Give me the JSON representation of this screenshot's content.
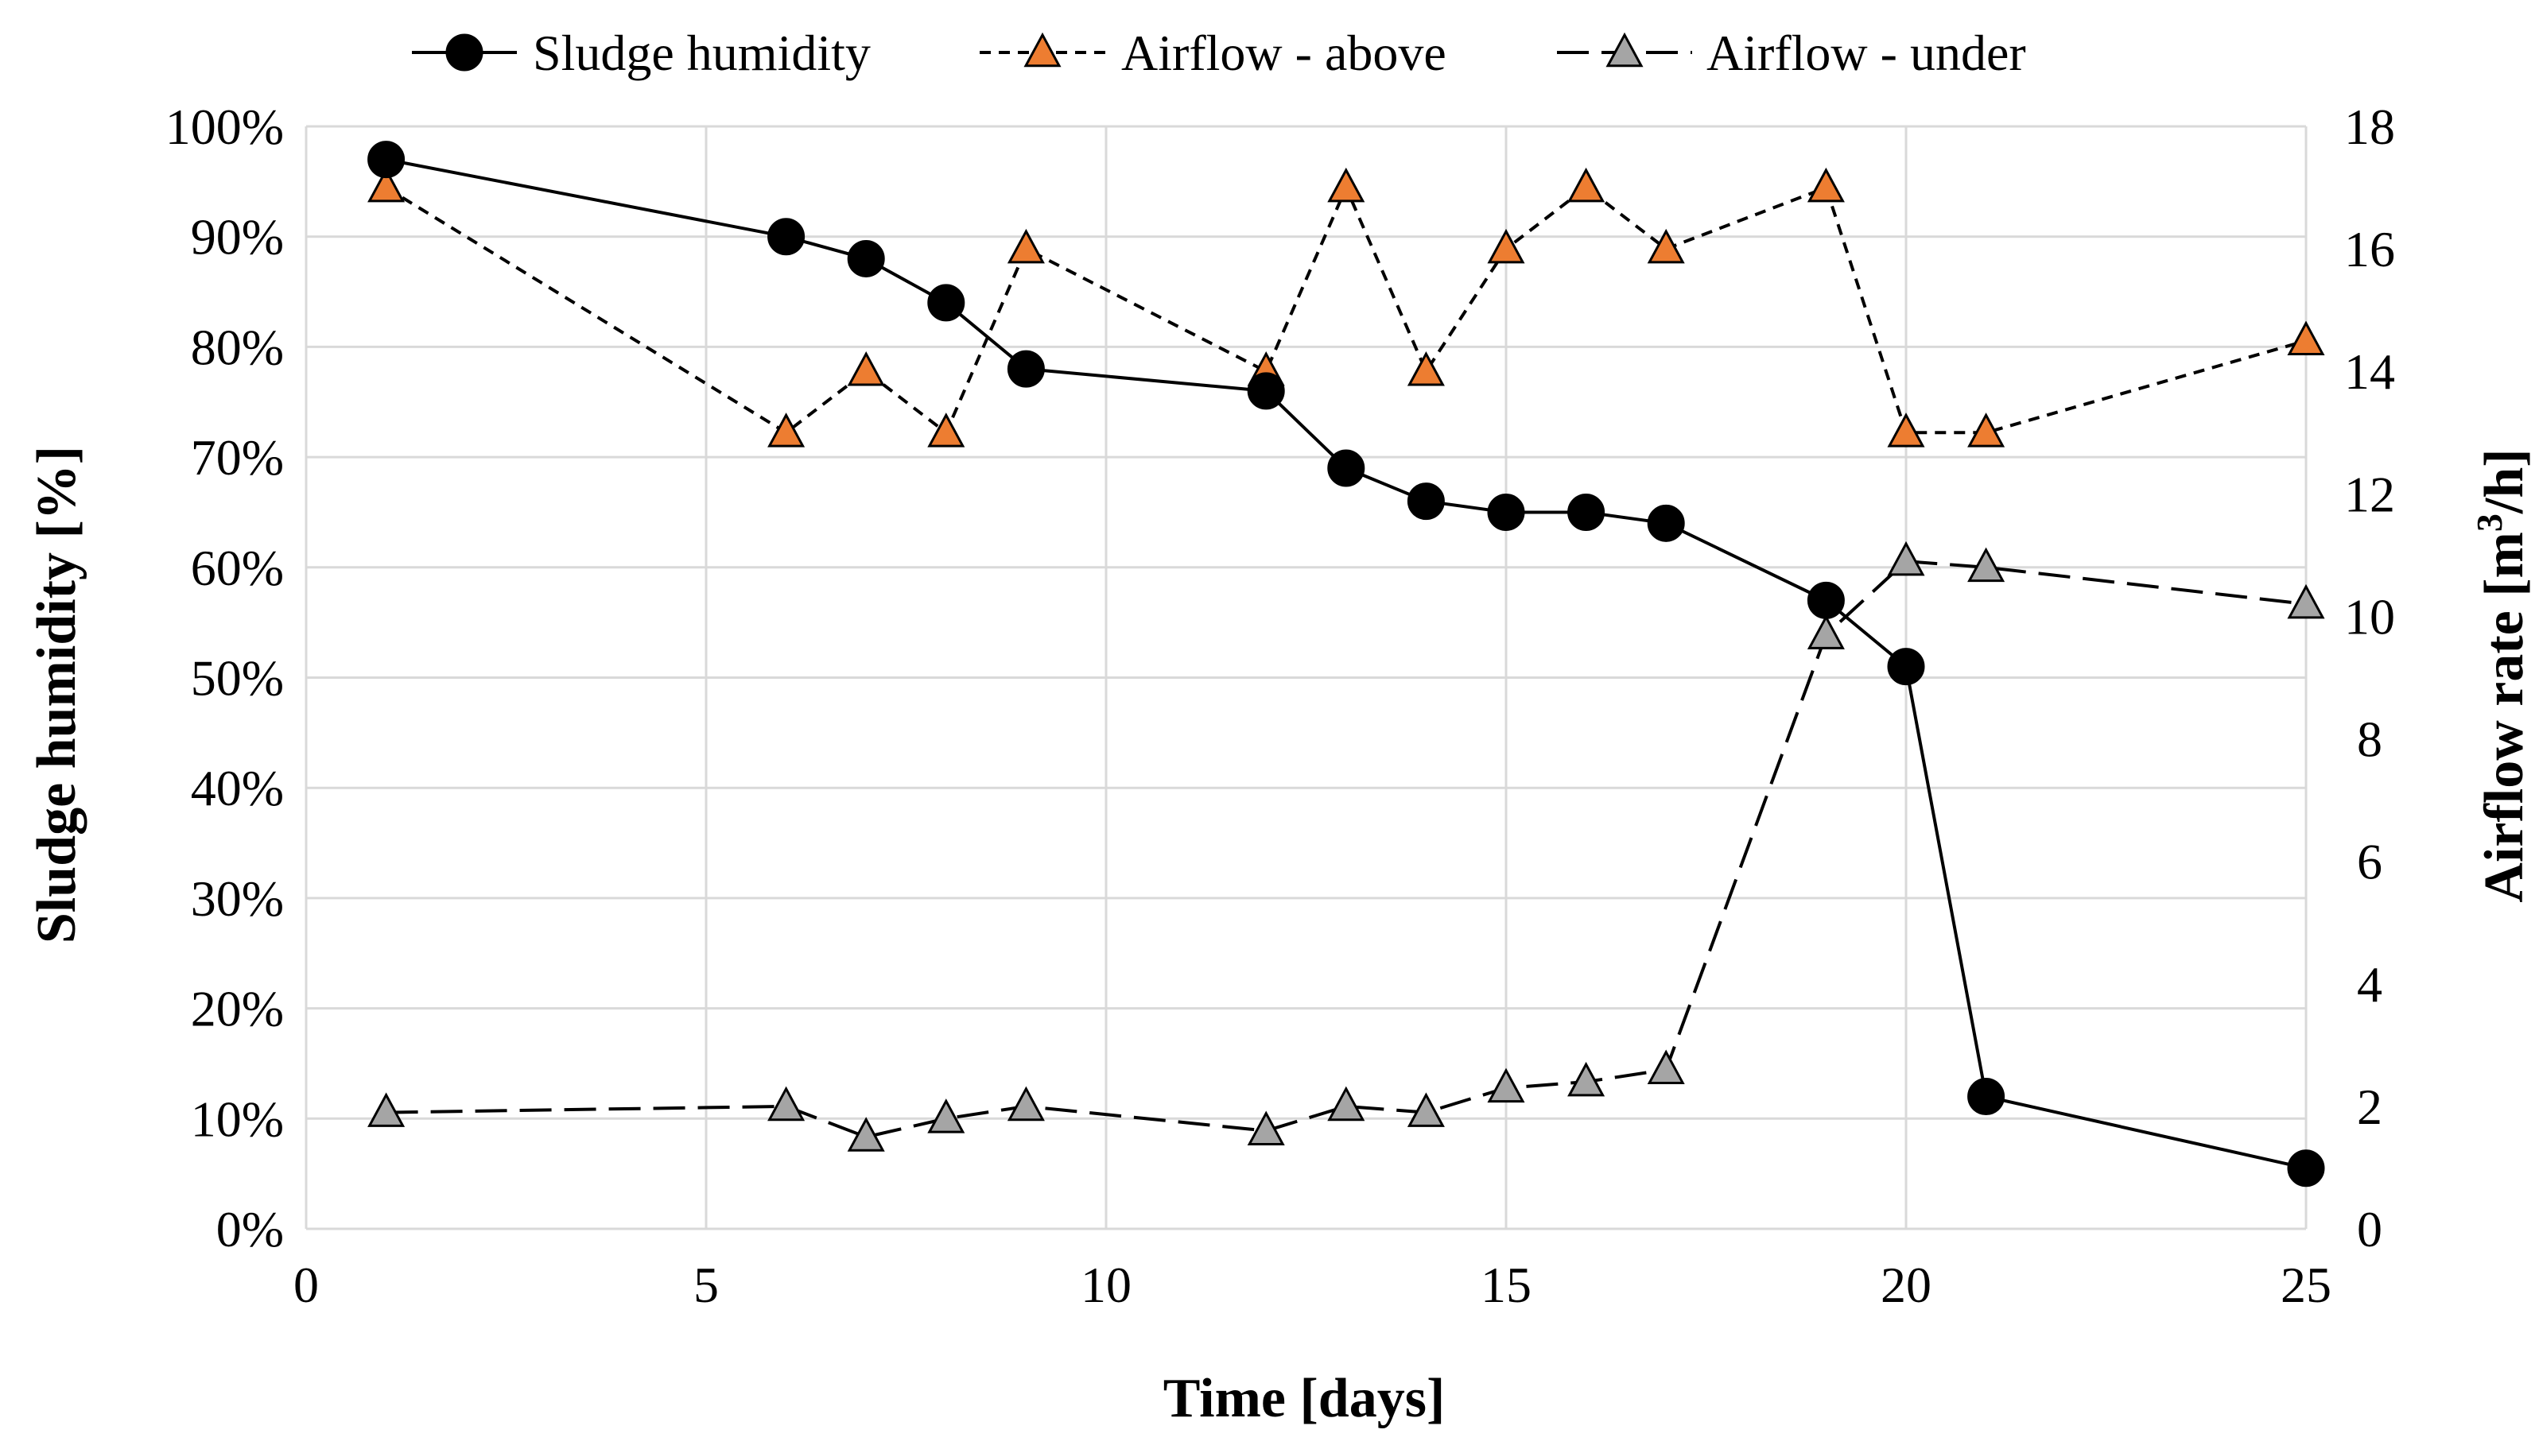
{
  "chart_data": {
    "type": "line",
    "title": "",
    "xlabel": "Time [days]",
    "ylabel_left": "Sludge humidity [%]",
    "ylabel_right_prefix": "Airflow rate [m",
    "ylabel_right_sup": "3",
    "ylabel_right_suffix": "/h]",
    "xlim": [
      0,
      25
    ],
    "ylim_left": [
      0,
      100
    ],
    "ylim_right": [
      0,
      18
    ],
    "x_ticks": [
      0,
      5,
      10,
      15,
      20,
      25
    ],
    "x_tick_labels": [
      "0",
      "5",
      "10",
      "15",
      "20",
      "25"
    ],
    "y_left_ticks": [
      0,
      10,
      20,
      30,
      40,
      50,
      60,
      70,
      80,
      90,
      100
    ],
    "y_left_tick_labels": [
      "0%",
      "10%",
      "20%",
      "30%",
      "40%",
      "50%",
      "60%",
      "70%",
      "80%",
      "90%",
      "100%"
    ],
    "y_right_ticks": [
      0,
      2,
      4,
      6,
      8,
      10,
      12,
      14,
      16,
      18
    ],
    "y_right_tick_labels": [
      "0",
      "2",
      "4",
      "6",
      "8",
      "10",
      "12",
      "14",
      "16",
      "18"
    ],
    "grid": true,
    "legend_position": "top-center",
    "series": [
      {
        "name": "Sludge humidity",
        "axis": "left",
        "marker": "circle",
        "line": "solid",
        "color": "#000000",
        "x": [
          1,
          6,
          7,
          8,
          9,
          12,
          13,
          14,
          15,
          16,
          17,
          19,
          20,
          21,
          25
        ],
        "y": [
          97,
          90,
          88,
          84,
          78,
          76,
          69,
          66,
          65,
          65,
          64,
          57,
          51,
          12,
          5.5
        ]
      },
      {
        "name": "Airflow - above",
        "axis": "right",
        "marker": "triangle",
        "line": "short-dash",
        "color": "#ED7D31",
        "x": [
          1,
          6,
          7,
          8,
          9,
          12,
          13,
          14,
          15,
          16,
          17,
          19,
          20,
          21,
          25
        ],
        "y": [
          17,
          13,
          14,
          13,
          16,
          14,
          17,
          14,
          16,
          17,
          16,
          17,
          13,
          13,
          14.5
        ]
      },
      {
        "name": "Airflow - under",
        "axis": "right",
        "marker": "triangle",
        "line": "long-dash",
        "color": "#A5A5A5",
        "x": [
          1,
          6,
          7,
          8,
          9,
          12,
          13,
          14,
          15,
          16,
          17,
          19,
          20,
          21,
          25
        ],
        "y": [
          1.9,
          2.0,
          1.5,
          1.8,
          2.0,
          1.6,
          2.0,
          1.9,
          2.3,
          2.4,
          2.6,
          9.7,
          10.9,
          10.8,
          10.2
        ]
      }
    ]
  }
}
